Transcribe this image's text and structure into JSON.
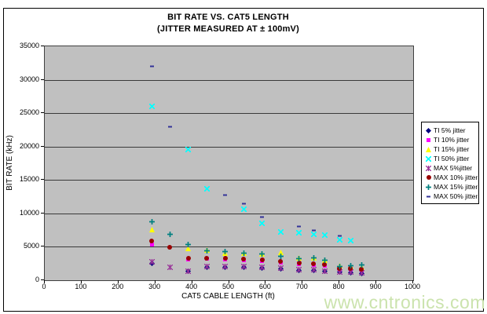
{
  "title": "BIT RATE VS. CAT5 LENGTH",
  "subtitle": "(JITTER MEASURED AT ± 100mV)",
  "watermark": "www.cntronics.com",
  "chart_data": {
    "type": "scatter",
    "title": "BIT RATE VS. CAT5 LENGTH",
    "subtitle": "(JITTER MEASURED AT ± 100mV)",
    "xlabel": "CAT5 CABLE LENGTH (ft)",
    "ylabel": "BIT RATE (kHz)",
    "xlim": [
      0,
      1000
    ],
    "ylim": [
      0,
      35000
    ],
    "x_ticks": [
      0,
      100,
      200,
      300,
      400,
      500,
      600,
      700,
      800,
      900,
      1000
    ],
    "y_ticks": [
      0,
      5000,
      10000,
      15000,
      20000,
      25000,
      30000,
      35000
    ],
    "grid": "horizontal",
    "plot_background": "#c0c0c0",
    "legend_position": "right",
    "series": [
      {
        "name": "TI 5% jitter",
        "marker": "diamond",
        "color": "#000080",
        "points": [
          [
            290,
            2500
          ],
          [
            390,
            1300
          ],
          [
            440,
            1900
          ],
          [
            490,
            1950
          ],
          [
            540,
            1900
          ],
          [
            590,
            1800
          ],
          [
            640,
            1750
          ],
          [
            690,
            1500
          ],
          [
            730,
            1450
          ],
          [
            760,
            1300
          ],
          [
            800,
            1200
          ],
          [
            830,
            1150
          ],
          [
            860,
            1050
          ]
        ]
      },
      {
        "name": "TI 10% jitter",
        "marker": "square",
        "color": "#ff00ff",
        "points": [
          [
            290,
            5400
          ],
          [
            390,
            3150
          ],
          [
            440,
            3200
          ],
          [
            490,
            3100
          ],
          [
            540,
            3000
          ],
          [
            590,
            2850
          ],
          [
            640,
            2650
          ],
          [
            690,
            2400
          ],
          [
            730,
            2300
          ],
          [
            760,
            2150
          ],
          [
            800,
            1600
          ],
          [
            830,
            1600
          ],
          [
            860,
            1450
          ]
        ]
      },
      {
        "name": "TI 15% jitter",
        "marker": "triangle",
        "color": "#ffff00",
        "points": [
          [
            290,
            7600
          ],
          [
            390,
            4800
          ],
          [
            440,
            4550
          ],
          [
            490,
            4050
          ],
          [
            540,
            4100
          ],
          [
            590,
            3900
          ],
          [
            640,
            4150
          ],
          [
            690,
            3350
          ],
          [
            730,
            3300
          ],
          [
            760,
            3050
          ],
          [
            800,
            2200
          ],
          [
            830,
            2100
          ],
          [
            860,
            1950
          ]
        ]
      },
      {
        "name": "TI 50% jitter",
        "marker": "x",
        "color": "#00ffff",
        "points": [
          [
            290,
            26000
          ],
          [
            390,
            19500
          ],
          [
            440,
            13700
          ],
          [
            540,
            10600
          ],
          [
            590,
            8500
          ],
          [
            640,
            7250
          ],
          [
            690,
            7150
          ],
          [
            730,
            6850
          ],
          [
            760,
            6800
          ],
          [
            800,
            6050
          ],
          [
            830,
            5900
          ]
        ]
      },
      {
        "name": "MAX 5%jitter",
        "marker": "star",
        "color": "#993399",
        "points": [
          [
            290,
            2750
          ],
          [
            340,
            1950
          ],
          [
            390,
            1400
          ],
          [
            440,
            2100
          ],
          [
            490,
            2080
          ],
          [
            540,
            2000
          ],
          [
            590,
            1900
          ],
          [
            640,
            1850
          ],
          [
            690,
            1600
          ],
          [
            730,
            1550
          ],
          [
            760,
            1400
          ],
          [
            800,
            1250
          ],
          [
            830,
            1200
          ],
          [
            860,
            1150
          ]
        ]
      },
      {
        "name": "MAX 10% jitter",
        "marker": "circle",
        "color": "#990000",
        "points": [
          [
            290,
            5900
          ],
          [
            340,
            4900
          ],
          [
            390,
            3300
          ],
          [
            440,
            3300
          ],
          [
            490,
            3250
          ],
          [
            540,
            3150
          ],
          [
            590,
            3000
          ],
          [
            640,
            2800
          ],
          [
            690,
            2550
          ],
          [
            730,
            2450
          ],
          [
            760,
            2300
          ],
          [
            800,
            1750
          ],
          [
            830,
            1750
          ],
          [
            860,
            1600
          ]
        ]
      },
      {
        "name": "MAX 15% jitter",
        "marker": "plus",
        "color": "#008080",
        "points": [
          [
            290,
            8700
          ],
          [
            340,
            6850
          ],
          [
            390,
            5350
          ],
          [
            440,
            4350
          ],
          [
            490,
            4250
          ],
          [
            540,
            4050
          ],
          [
            590,
            3900
          ],
          [
            640,
            3550
          ],
          [
            690,
            3250
          ],
          [
            730,
            3300
          ],
          [
            760,
            3000
          ],
          [
            800,
            2100
          ],
          [
            830,
            2150
          ],
          [
            860,
            2250
          ]
        ]
      },
      {
        "name": "MAX 50% jitter",
        "marker": "dash",
        "color": "#333399",
        "points": [
          [
            290,
            32000
          ],
          [
            340,
            23000
          ],
          [
            490,
            12700
          ],
          [
            540,
            11500
          ],
          [
            590,
            9500
          ],
          [
            690,
            8100
          ],
          [
            730,
            7500
          ],
          [
            800,
            6650
          ]
        ]
      }
    ]
  }
}
